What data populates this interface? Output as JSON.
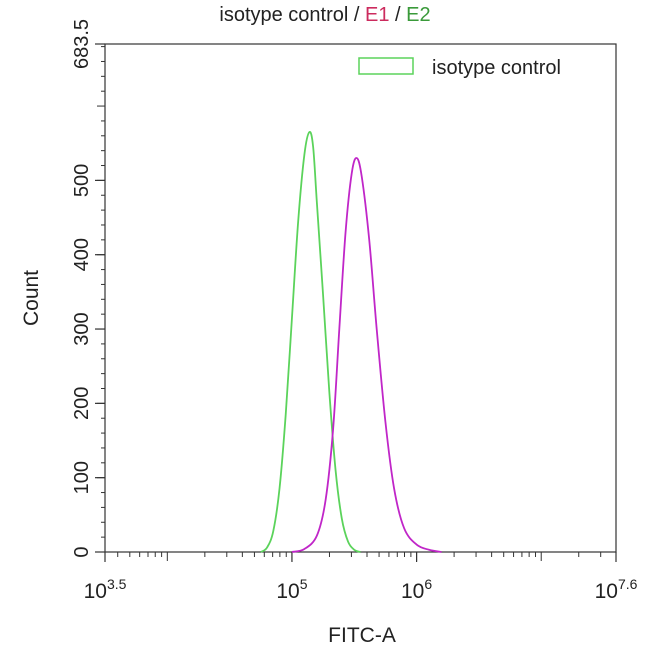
{
  "title": {
    "part_isotype": "isotype control",
    "sep1": " / ",
    "part_e1": "E1",
    "sep2": " / ",
    "part_e2": "E2"
  },
  "colors": {
    "isotype": "#5bd35b",
    "e1": "#c026c8",
    "title_e1": "#cc2b5e",
    "title_e2": "#3a9a3a"
  },
  "chart_data": {
    "type": "line",
    "xlabel": "FITC-A",
    "ylabel": "Count",
    "x_scale": "log10",
    "xlim_exp": [
      3.5,
      7.6
    ],
    "ylim": [
      0,
      683.5
    ],
    "x_ticks": [
      {
        "exp": 3.5,
        "base": "10",
        "sup": "3.5"
      },
      {
        "exp": 5,
        "base": "10",
        "sup": "5"
      },
      {
        "exp": 6,
        "base": "10",
        "sup": "6"
      },
      {
        "exp": 7.6,
        "base": "10",
        "sup": "7.6"
      }
    ],
    "y_ticks": [
      {
        "value": 0,
        "label": "0"
      },
      {
        "value": 100,
        "label": "100"
      },
      {
        "value": 200,
        "label": "200"
      },
      {
        "value": 300,
        "label": "300"
      },
      {
        "value": 400,
        "label": "400"
      },
      {
        "value": 500,
        "label": "500"
      },
      {
        "value": 683.5,
        "label": "683.5"
      }
    ],
    "legend": {
      "placement": "top-right",
      "entries": [
        "isotype control"
      ]
    },
    "series": [
      {
        "name": "isotype control",
        "color": "#5bd35b",
        "points": [
          [
            4.75,
            0
          ],
          [
            4.8,
            6
          ],
          [
            4.85,
            28
          ],
          [
            4.9,
            85
          ],
          [
            4.95,
            185
          ],
          [
            5.0,
            315
          ],
          [
            5.05,
            445
          ],
          [
            5.1,
            535
          ],
          [
            5.14,
            565
          ],
          [
            5.17,
            545
          ],
          [
            5.2,
            470
          ],
          [
            5.25,
            345
          ],
          [
            5.3,
            215
          ],
          [
            5.35,
            110
          ],
          [
            5.4,
            45
          ],
          [
            5.45,
            14
          ],
          [
            5.5,
            3
          ],
          [
            5.55,
            0
          ]
        ]
      },
      {
        "series_name_hidden": true,
        "color": "#c026c8",
        "points": [
          [
            5.0,
            0
          ],
          [
            5.1,
            4
          ],
          [
            5.2,
            22
          ],
          [
            5.27,
            70
          ],
          [
            5.33,
            165
          ],
          [
            5.38,
            300
          ],
          [
            5.43,
            430
          ],
          [
            5.48,
            510
          ],
          [
            5.52,
            530
          ],
          [
            5.56,
            505
          ],
          [
            5.62,
            420
          ],
          [
            5.68,
            300
          ],
          [
            5.75,
            175
          ],
          [
            5.82,
            85
          ],
          [
            5.9,
            32
          ],
          [
            6.0,
            10
          ],
          [
            6.1,
            3
          ],
          [
            6.2,
            0
          ]
        ]
      }
    ]
  }
}
